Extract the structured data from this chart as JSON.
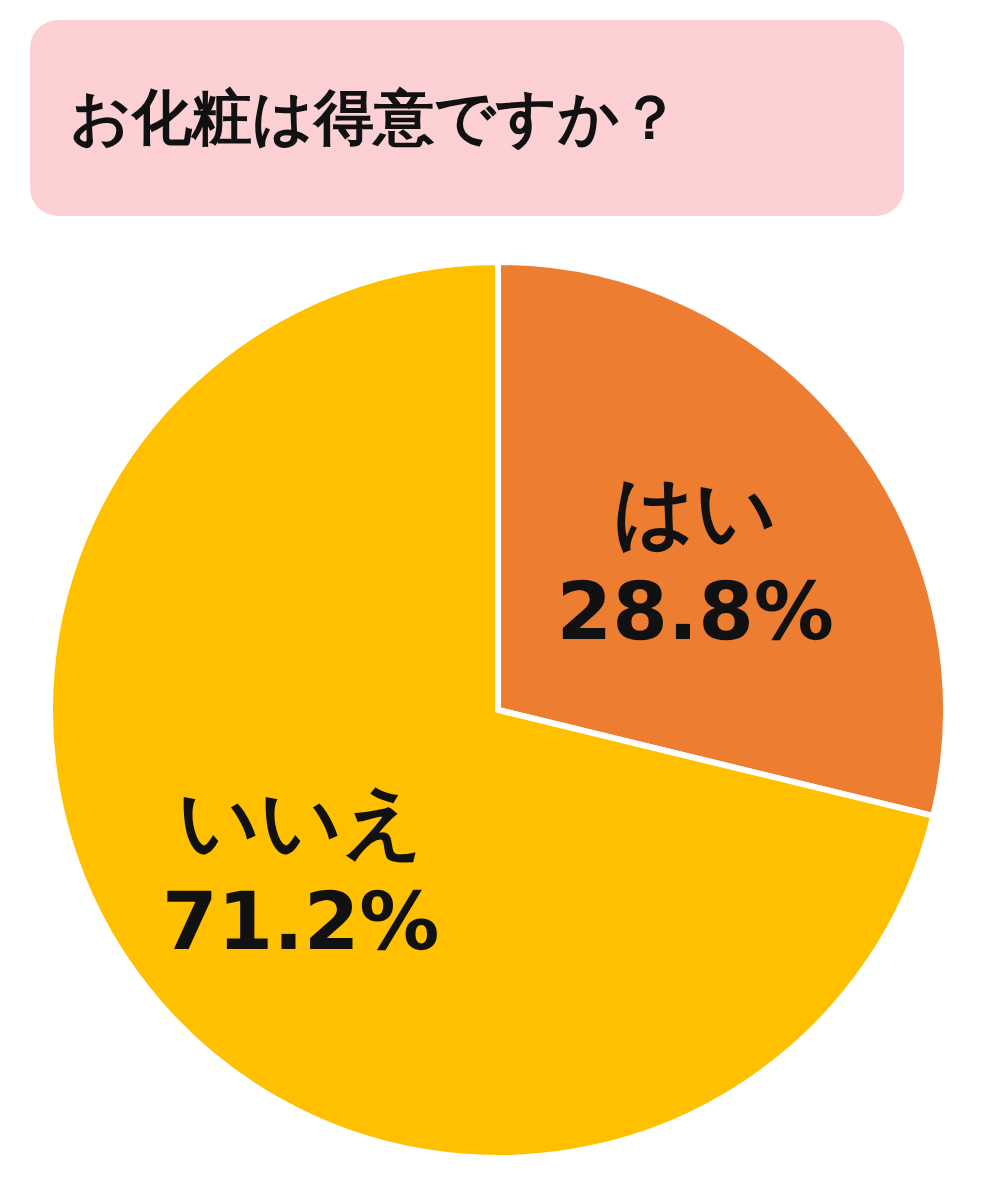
{
  "chart_data": {
    "type": "pie",
    "title": "お化粧は得意ですか？",
    "categories": [
      "はい",
      "いいえ"
    ],
    "values": [
      28.8,
      71.2
    ],
    "colors": [
      "#ed7d31",
      "#ffc000"
    ],
    "value_labels": [
      "28.8%",
      "71.2%"
    ],
    "legend": false
  }
}
